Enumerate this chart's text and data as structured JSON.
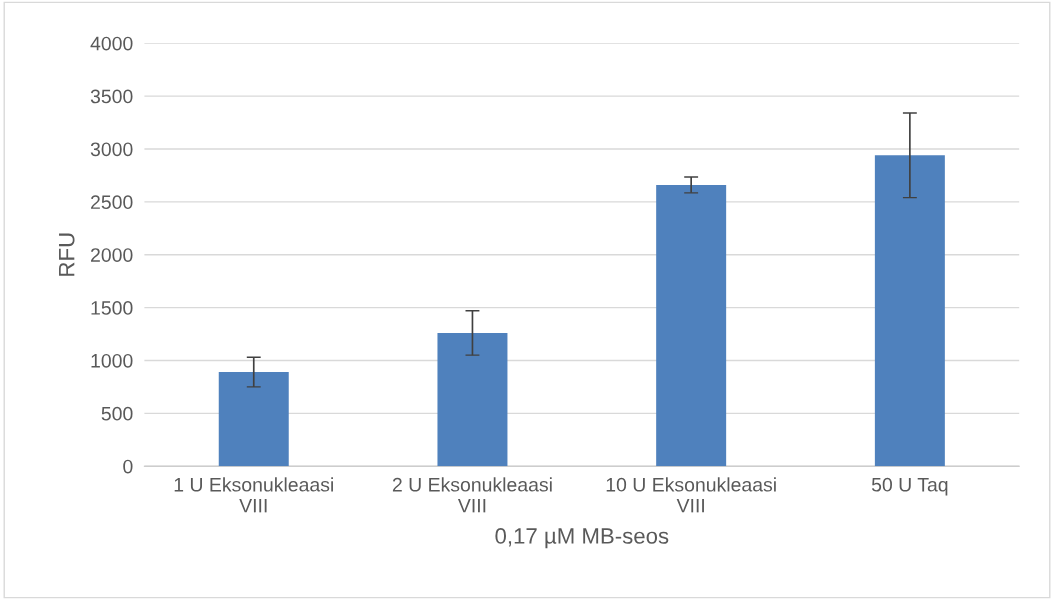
{
  "chart_data": {
    "type": "bar",
    "xlabel": "0,17 µM MB-seos",
    "ylabel": "RFU",
    "categories": [
      "1 U Eksonukleaasi VIII",
      "2 U Eksonukleaasi VIII",
      "10 U Eksonukleaasi VIII",
      "50 U Taq"
    ],
    "values": [
      890,
      1260,
      2660,
      2940
    ],
    "errors": [
      140,
      210,
      75,
      400
    ],
    "color": "#4f81bd",
    "ylim": [
      0,
      4000
    ],
    "yticks": [
      0,
      500,
      1000,
      1500,
      2000,
      2500,
      3000,
      3500,
      4000
    ],
    "grid": "y"
  }
}
